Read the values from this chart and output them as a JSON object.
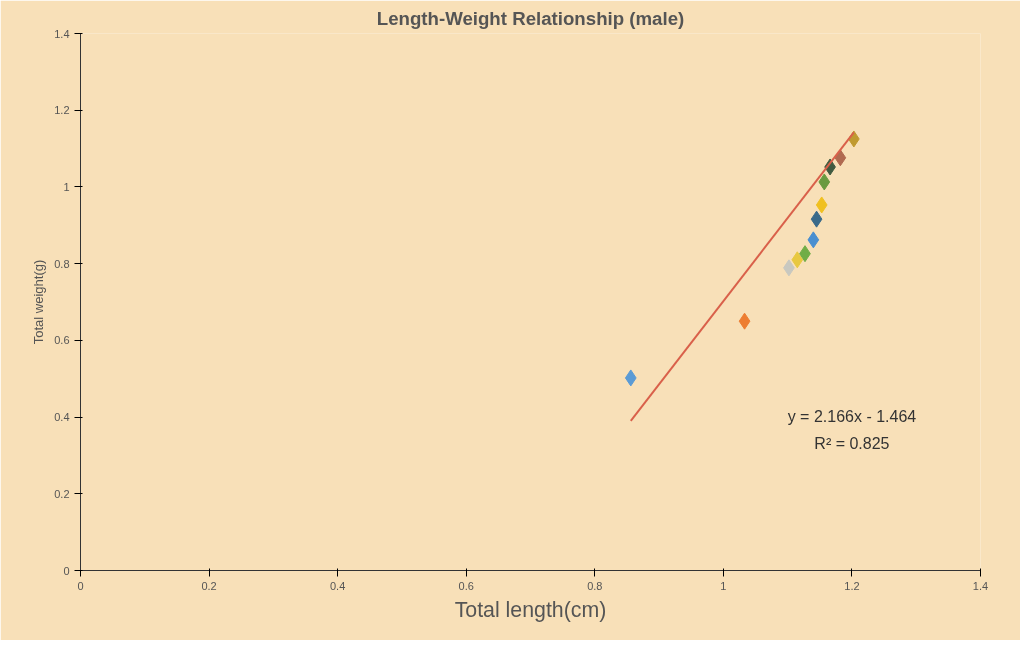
{
  "chart_data": {
    "type": "scatter",
    "title": "Length-Weight Relationship (male)",
    "xlabel": "Total length(cm)",
    "ylabel": "Total weight(g)",
    "xlim": [
      0,
      1.4
    ],
    "ylim": [
      0,
      1.4
    ],
    "xticks": [
      0,
      0.2,
      0.4,
      0.6,
      0.8,
      1,
      1.2,
      1.4
    ],
    "yticks": [
      0,
      0.2,
      0.4,
      0.6,
      0.8,
      1,
      1.2,
      1.4
    ],
    "grid": false,
    "series": [
      {
        "marker": "diamond",
        "x": [
          0.856,
          1.033,
          1.102,
          1.115,
          1.127,
          1.14,
          1.145,
          1.153,
          1.157,
          1.166,
          1.182,
          1.203
        ],
        "values": [
          0.502,
          0.65,
          0.789,
          0.81,
          0.826,
          0.862,
          0.916,
          0.953,
          1.013,
          1.052,
          1.076,
          1.125
        ],
        "colors": [
          "#5b9bd5",
          "#ed7d31",
          "#c8c8c0",
          "#e8c840",
          "#70ad47",
          "#4a8fd0",
          "#3a6a8a",
          "#f0c020",
          "#6a9a40",
          "#405a40",
          "#b06a50",
          "#c09a30"
        ]
      },
      {
        "type": "line",
        "color": "#d9604a",
        "x": [
          0.856,
          1.203
        ],
        "values": [
          0.39,
          1.142
        ]
      }
    ],
    "annotations": [
      "y = 2.166x - 1.464",
      "R² = 0.825"
    ]
  }
}
